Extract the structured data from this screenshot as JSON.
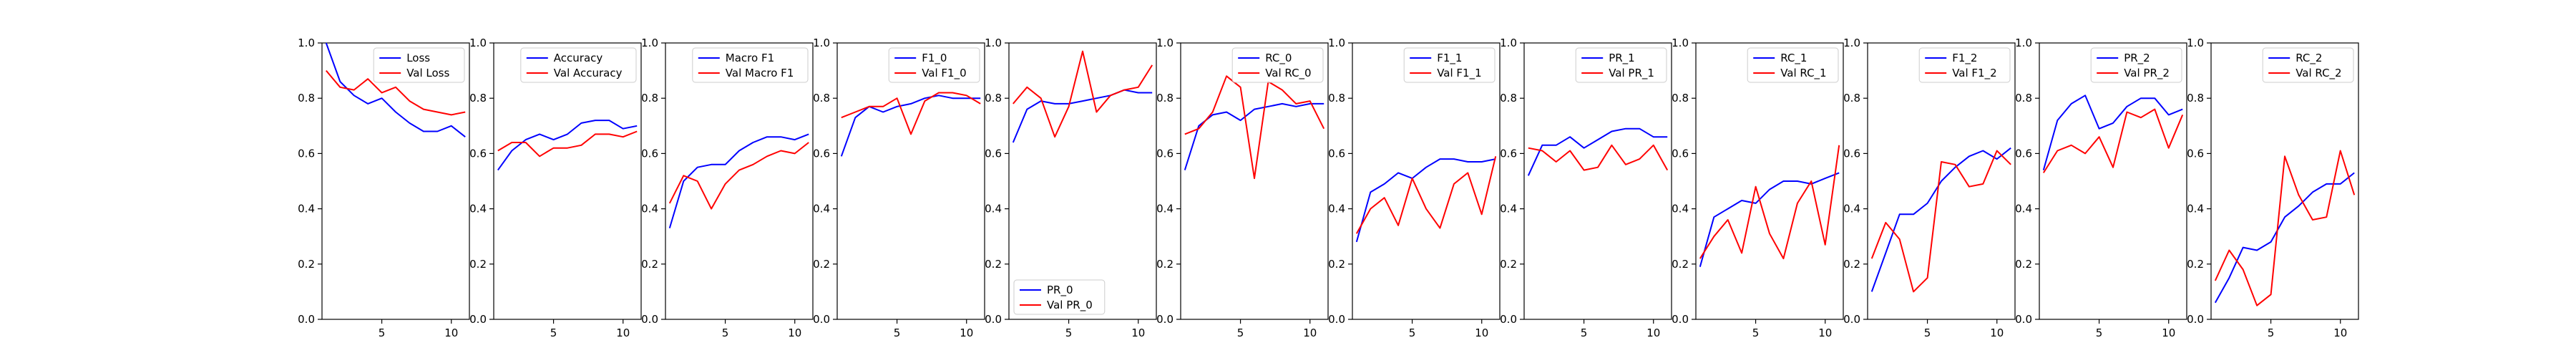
{
  "figure": {
    "series_colors": [
      "#0000ff",
      "#ff0000"
    ],
    "frame_color": "#000000"
  },
  "chart_data": [
    {
      "type": "line",
      "x": [
        1,
        2,
        3,
        4,
        5,
        6,
        7,
        8,
        9,
        10,
        11
      ],
      "xticks": [
        5,
        10
      ],
      "ylim": [
        0.0,
        1.0
      ],
      "yticks": [
        "0.0",
        "0.2",
        "0.4",
        "0.6",
        "0.8",
        "1.0"
      ],
      "legend": "top-right",
      "series": [
        {
          "name": "Loss",
          "values": [
            1.0,
            0.86,
            0.81,
            0.78,
            0.8,
            0.75,
            0.71,
            0.68,
            0.68,
            0.7,
            0.66
          ]
        },
        {
          "name": "Val Loss",
          "values": [
            0.9,
            0.84,
            0.83,
            0.87,
            0.82,
            0.84,
            0.79,
            0.76,
            0.75,
            0.74,
            0.75
          ]
        }
      ]
    },
    {
      "type": "line",
      "x": [
        1,
        2,
        3,
        4,
        5,
        6,
        7,
        8,
        9,
        10,
        11
      ],
      "xticks": [
        5,
        10
      ],
      "ylim": [
        0.0,
        1.0
      ],
      "legend": "top-right",
      "series": [
        {
          "name": "Accuracy",
          "values": [
            0.54,
            0.61,
            0.65,
            0.67,
            0.65,
            0.67,
            0.71,
            0.72,
            0.72,
            0.69,
            0.7
          ]
        },
        {
          "name": "Val Accuracy",
          "values": [
            0.61,
            0.64,
            0.64,
            0.59,
            0.62,
            0.62,
            0.63,
            0.67,
            0.67,
            0.66,
            0.68
          ]
        }
      ]
    },
    {
      "type": "line",
      "x": [
        1,
        2,
        3,
        4,
        5,
        6,
        7,
        8,
        9,
        10,
        11
      ],
      "xticks": [
        5,
        10
      ],
      "ylim": [
        0.0,
        1.0
      ],
      "legend": "top-right",
      "series": [
        {
          "name": "Macro F1",
          "values": [
            0.33,
            0.5,
            0.55,
            0.56,
            0.56,
            0.61,
            0.64,
            0.66,
            0.66,
            0.65,
            0.67
          ]
        },
        {
          "name": "Val Macro F1",
          "values": [
            0.42,
            0.52,
            0.5,
            0.4,
            0.49,
            0.54,
            0.56,
            0.59,
            0.61,
            0.6,
            0.64
          ]
        }
      ]
    },
    {
      "type": "line",
      "x": [
        1,
        2,
        3,
        4,
        5,
        6,
        7,
        8,
        9,
        10,
        11
      ],
      "xticks": [
        5,
        10
      ],
      "ylim": [
        0.0,
        1.0
      ],
      "legend": "top-right",
      "series": [
        {
          "name": "F1_0",
          "values": [
            0.59,
            0.73,
            0.77,
            0.75,
            0.77,
            0.78,
            0.8,
            0.81,
            0.8,
            0.8,
            0.8
          ]
        },
        {
          "name": "Val F1_0",
          "values": [
            0.73,
            0.75,
            0.77,
            0.77,
            0.8,
            0.67,
            0.79,
            0.82,
            0.82,
            0.81,
            0.78
          ]
        }
      ]
    },
    {
      "type": "line",
      "x": [
        1,
        2,
        3,
        4,
        5,
        6,
        7,
        8,
        9,
        10,
        11
      ],
      "xticks": [
        5,
        10
      ],
      "ylim": [
        0.0,
        1.0
      ],
      "legend": "bottom-left",
      "series": [
        {
          "name": "PR_0",
          "values": [
            0.64,
            0.76,
            0.79,
            0.78,
            0.78,
            0.79,
            0.8,
            0.81,
            0.83,
            0.82,
            0.82
          ]
        },
        {
          "name": "Val PR_0",
          "values": [
            0.78,
            0.84,
            0.8,
            0.66,
            0.77,
            0.97,
            0.75,
            0.81,
            0.83,
            0.84,
            0.92
          ]
        }
      ]
    },
    {
      "type": "line",
      "x": [
        1,
        2,
        3,
        4,
        5,
        6,
        7,
        8,
        9,
        10,
        11
      ],
      "xticks": [
        5,
        10
      ],
      "ylim": [
        0.0,
        1.0
      ],
      "legend": "top-right",
      "series": [
        {
          "name": "RC_0",
          "values": [
            0.54,
            0.7,
            0.74,
            0.75,
            0.72,
            0.76,
            0.77,
            0.78,
            0.77,
            0.78,
            0.78
          ]
        },
        {
          "name": "Val RC_0",
          "values": [
            0.67,
            0.69,
            0.75,
            0.88,
            0.84,
            0.51,
            0.86,
            0.83,
            0.78,
            0.79,
            0.69
          ]
        }
      ]
    },
    {
      "type": "line",
      "x": [
        1,
        2,
        3,
        4,
        5,
        6,
        7,
        8,
        9,
        10,
        11
      ],
      "xticks": [
        5,
        10
      ],
      "ylim": [
        0.0,
        1.0
      ],
      "legend": "top-right",
      "series": [
        {
          "name": "F1_1",
          "values": [
            0.28,
            0.46,
            0.49,
            0.53,
            0.51,
            0.55,
            0.58,
            0.58,
            0.57,
            0.57,
            0.58
          ]
        },
        {
          "name": "Val F1_1",
          "values": [
            0.31,
            0.4,
            0.44,
            0.34,
            0.51,
            0.4,
            0.33,
            0.49,
            0.53,
            0.38,
            0.59
          ]
        }
      ]
    },
    {
      "type": "line",
      "x": [
        1,
        2,
        3,
        4,
        5,
        6,
        7,
        8,
        9,
        10,
        11
      ],
      "xticks": [
        5,
        10
      ],
      "ylim": [
        0.0,
        1.0
      ],
      "legend": "top-right",
      "series": [
        {
          "name": "PR_1",
          "values": [
            0.52,
            0.63,
            0.63,
            0.66,
            0.62,
            0.65,
            0.68,
            0.69,
            0.69,
            0.66,
            0.66
          ]
        },
        {
          "name": "Val PR_1",
          "values": [
            0.62,
            0.61,
            0.57,
            0.61,
            0.54,
            0.55,
            0.63,
            0.56,
            0.58,
            0.63,
            0.54
          ]
        }
      ]
    },
    {
      "type": "line",
      "x": [
        1,
        2,
        3,
        4,
        5,
        6,
        7,
        8,
        9,
        10,
        11
      ],
      "xticks": [
        5,
        10
      ],
      "ylim": [
        0.0,
        1.0
      ],
      "legend": "top-right",
      "series": [
        {
          "name": "RC_1",
          "values": [
            0.19,
            0.37,
            0.4,
            0.43,
            0.42,
            0.47,
            0.5,
            0.5,
            0.49,
            0.51,
            0.53
          ]
        },
        {
          "name": "Val RC_1",
          "values": [
            0.22,
            0.3,
            0.36,
            0.24,
            0.48,
            0.31,
            0.22,
            0.42,
            0.5,
            0.27,
            0.63
          ]
        }
      ]
    },
    {
      "type": "line",
      "x": [
        1,
        2,
        3,
        4,
        5,
        6,
        7,
        8,
        9,
        10,
        11
      ],
      "xticks": [
        5,
        10
      ],
      "ylim": [
        0.0,
        1.0
      ],
      "legend": "top-right",
      "series": [
        {
          "name": "F1_2",
          "values": [
            0.1,
            0.24,
            0.38,
            0.38,
            0.42,
            0.5,
            0.55,
            0.59,
            0.61,
            0.58,
            0.62
          ]
        },
        {
          "name": "Val F1_2",
          "values": [
            0.22,
            0.35,
            0.29,
            0.1,
            0.15,
            0.57,
            0.56,
            0.48,
            0.49,
            0.61,
            0.56
          ]
        }
      ]
    },
    {
      "type": "line",
      "x": [
        1,
        2,
        3,
        4,
        5,
        6,
        7,
        8,
        9,
        10,
        11
      ],
      "xticks": [
        5,
        10
      ],
      "ylim": [
        0.0,
        1.0
      ],
      "legend": "top-right",
      "series": [
        {
          "name": "PR_2",
          "values": [
            0.54,
            0.72,
            0.78,
            0.81,
            0.69,
            0.71,
            0.77,
            0.8,
            0.8,
            0.74,
            0.76
          ]
        },
        {
          "name": "Val PR_2",
          "values": [
            0.53,
            0.61,
            0.63,
            0.6,
            0.66,
            0.55,
            0.75,
            0.73,
            0.76,
            0.62,
            0.74
          ]
        }
      ]
    },
    {
      "type": "line",
      "x": [
        1,
        2,
        3,
        4,
        5,
        6,
        7,
        8,
        9,
        10,
        11
      ],
      "xticks": [
        5,
        10
      ],
      "ylim": [
        0.0,
        1.0
      ],
      "legend": "top-right",
      "series": [
        {
          "name": "RC_2",
          "values": [
            0.06,
            0.15,
            0.26,
            0.25,
            0.28,
            0.37,
            0.41,
            0.46,
            0.49,
            0.49,
            0.53
          ]
        },
        {
          "name": "Val RC_2",
          "values": [
            0.14,
            0.25,
            0.18,
            0.05,
            0.09,
            0.59,
            0.45,
            0.36,
            0.37,
            0.61,
            0.45
          ]
        }
      ]
    }
  ]
}
